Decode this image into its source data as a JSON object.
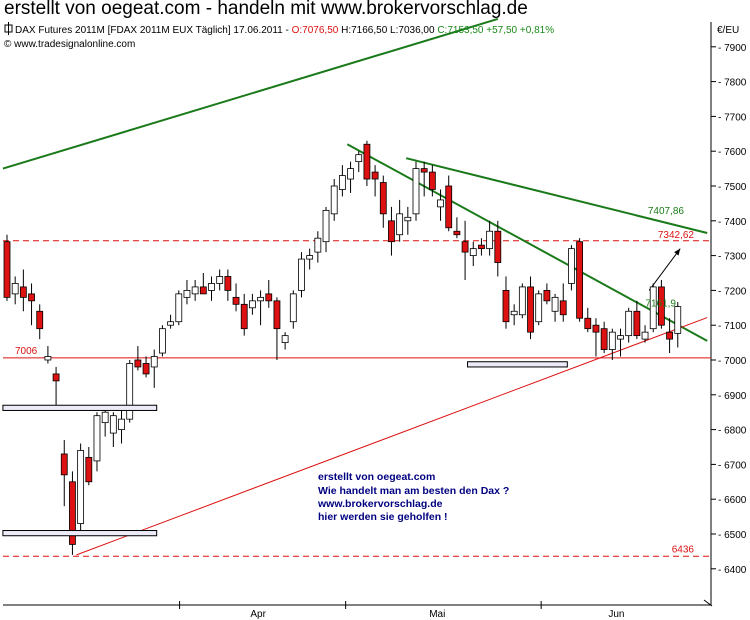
{
  "banner": "erstellt von oegeat.com - handeln mit www.brokervorschlag.de",
  "header": {
    "instrument": "DAX Futures 2011M [FDAX 2011M EUX  Täglich] 17.06.2011 - ",
    "open": "O:7076,50",
    "hl": " H:7166,50 L:7036,00 ",
    "close_change": "C:7153,50 +57,50 +0,81%",
    "copyright": "© www.tradesignalonline.com"
  },
  "axis": {
    "unit": "€/EU"
  },
  "annotation_box": {
    "line1": "erstellt von oegeat.com",
    "line2": "Wie handelt man am besten den Dax ?",
    "line3": "www.brokervorschlag.de",
    "line4": "hier werden sie geholfen !"
  },
  "colors": {
    "bull": "#ffffff",
    "bear": "#dd1111",
    "trendline": "#1a7a1a",
    "support": "#dd1111",
    "annotation": "#000080"
  },
  "chart_data": {
    "type": "candlestick",
    "title": "DAX Futures 2011M [FDAX 2011M EUX  Täglich] 17.06.2011",
    "ylabel": "€/EU",
    "ylim": [
      6370,
      7990
    ],
    "yticks": [
      6400,
      6500,
      6600,
      6700,
      6800,
      6900,
      7000,
      7100,
      7200,
      7300,
      7400,
      7500,
      7600,
      7700,
      7800,
      7900
    ],
    "x_tick_labels": [
      "Apr",
      "Mai",
      "Jun"
    ],
    "last": {
      "open": 7076.5,
      "high": 7166.5,
      "low": 7036.0,
      "close": 7153.5,
      "change": 57.5,
      "change_pct": 0.81
    },
    "candles": [
      {
        "o": 7340,
        "h": 7360,
        "l": 7170,
        "c": 7180
      },
      {
        "o": 7190,
        "h": 7240,
        "l": 7160,
        "c": 7220
      },
      {
        "o": 7210,
        "h": 7260,
        "l": 7140,
        "c": 7180
      },
      {
        "o": 7190,
        "h": 7220,
        "l": 7100,
        "c": 7170
      },
      {
        "o": 7140,
        "h": 7160,
        "l": 7060,
        "c": 7090
      },
      {
        "o": 7000,
        "h": 7040,
        "l": 6990,
        "c": 7010
      },
      {
        "o": 6960,
        "h": 6980,
        "l": 6870,
        "c": 6940
      },
      {
        "o": 6730,
        "h": 6770,
        "l": 6580,
        "c": 6670
      },
      {
        "o": 6650,
        "h": 6680,
        "l": 6440,
        "c": 6470
      },
      {
        "o": 6530,
        "h": 6760,
        "l": 6500,
        "c": 6740
      },
      {
        "o": 6720,
        "h": 6750,
        "l": 6640,
        "c": 6650
      },
      {
        "o": 6710,
        "h": 6850,
        "l": 6680,
        "c": 6840
      },
      {
        "o": 6820,
        "h": 6860,
        "l": 6780,
        "c": 6850
      },
      {
        "o": 6790,
        "h": 6850,
        "l": 6750,
        "c": 6840
      },
      {
        "o": 6800,
        "h": 6860,
        "l": 6760,
        "c": 6830
      },
      {
        "o": 6830,
        "h": 7000,
        "l": 6820,
        "c": 6990
      },
      {
        "o": 7000,
        "h": 7040,
        "l": 6970,
        "c": 6980
      },
      {
        "o": 6990,
        "h": 7010,
        "l": 6950,
        "c": 6960
      },
      {
        "o": 6980,
        "h": 7030,
        "l": 6920,
        "c": 7010
      },
      {
        "o": 7020,
        "h": 7100,
        "l": 7010,
        "c": 7090
      },
      {
        "o": 7100,
        "h": 7130,
        "l": 7090,
        "c": 7110
      },
      {
        "o": 7110,
        "h": 7200,
        "l": 7100,
        "c": 7190
      },
      {
        "o": 7180,
        "h": 7230,
        "l": 7160,
        "c": 7200
      },
      {
        "o": 7190,
        "h": 7230,
        "l": 7170,
        "c": 7210
      },
      {
        "o": 7210,
        "h": 7250,
        "l": 7190,
        "c": 7190
      },
      {
        "o": 7200,
        "h": 7240,
        "l": 7170,
        "c": 7220
      },
      {
        "o": 7220,
        "h": 7260,
        "l": 7200,
        "c": 7240
      },
      {
        "o": 7240,
        "h": 7260,
        "l": 7170,
        "c": 7200
      },
      {
        "o": 7180,
        "h": 7220,
        "l": 7140,
        "c": 7160
      },
      {
        "o": 7160,
        "h": 7190,
        "l": 7070,
        "c": 7090
      },
      {
        "o": 7150,
        "h": 7190,
        "l": 7130,
        "c": 7170
      },
      {
        "o": 7170,
        "h": 7200,
        "l": 7100,
        "c": 7180
      },
      {
        "o": 7190,
        "h": 7230,
        "l": 7150,
        "c": 7170
      },
      {
        "o": 7170,
        "h": 7180,
        "l": 7000,
        "c": 7090
      },
      {
        "o": 7050,
        "h": 7080,
        "l": 7030,
        "c": 7070
      },
      {
        "o": 7110,
        "h": 7200,
        "l": 7090,
        "c": 7190
      },
      {
        "o": 7200,
        "h": 7310,
        "l": 7180,
        "c": 7290
      },
      {
        "o": 7290,
        "h": 7320,
        "l": 7260,
        "c": 7300
      },
      {
        "o": 7310,
        "h": 7370,
        "l": 7280,
        "c": 7350
      },
      {
        "o": 7340,
        "h": 7440,
        "l": 7310,
        "c": 7430
      },
      {
        "o": 7420,
        "h": 7520,
        "l": 7400,
        "c": 7500
      },
      {
        "o": 7490,
        "h": 7560,
        "l": 7470,
        "c": 7530
      },
      {
        "o": 7520,
        "h": 7570,
        "l": 7480,
        "c": 7550
      },
      {
        "o": 7570,
        "h": 7600,
        "l": 7540,
        "c": 7590
      },
      {
        "o": 7620,
        "h": 7630,
        "l": 7500,
        "c": 7520
      },
      {
        "o": 7540,
        "h": 7560,
        "l": 7470,
        "c": 7520
      },
      {
        "o": 7510,
        "h": 7530,
        "l": 7380,
        "c": 7420
      },
      {
        "o": 7400,
        "h": 7440,
        "l": 7300,
        "c": 7340
      },
      {
        "o": 7360,
        "h": 7460,
        "l": 7340,
        "c": 7420
      },
      {
        "o": 7400,
        "h": 7440,
        "l": 7360,
        "c": 7410
      },
      {
        "o": 7420,
        "h": 7570,
        "l": 7400,
        "c": 7550
      },
      {
        "o": 7550,
        "h": 7570,
        "l": 7470,
        "c": 7540
      },
      {
        "o": 7540,
        "h": 7560,
        "l": 7470,
        "c": 7490
      },
      {
        "o": 7440,
        "h": 7490,
        "l": 7400,
        "c": 7460
      },
      {
        "o": 7500,
        "h": 7530,
        "l": 7370,
        "c": 7380
      },
      {
        "o": 7370,
        "h": 7410,
        "l": 7350,
        "c": 7360
      },
      {
        "o": 7340,
        "h": 7400,
        "l": 7230,
        "c": 7310
      },
      {
        "o": 7300,
        "h": 7340,
        "l": 7270,
        "c": 7320
      },
      {
        "o": 7330,
        "h": 7350,
        "l": 7300,
        "c": 7320
      },
      {
        "o": 7320,
        "h": 7400,
        "l": 7300,
        "c": 7370
      },
      {
        "o": 7370,
        "h": 7400,
        "l": 7240,
        "c": 7280
      },
      {
        "o": 7200,
        "h": 7240,
        "l": 7090,
        "c": 7110
      },
      {
        "o": 7130,
        "h": 7160,
        "l": 7100,
        "c": 7140
      },
      {
        "o": 7130,
        "h": 7220,
        "l": 7120,
        "c": 7210
      },
      {
        "o": 7210,
        "h": 7240,
        "l": 7060,
        "c": 7080
      },
      {
        "o": 7110,
        "h": 7200,
        "l": 7100,
        "c": 7190
      },
      {
        "o": 7200,
        "h": 7220,
        "l": 7160,
        "c": 7170
      },
      {
        "o": 7140,
        "h": 7190,
        "l": 7110,
        "c": 7180
      },
      {
        "o": 7170,
        "h": 7220,
        "l": 7110,
        "c": 7130
      },
      {
        "o": 7220,
        "h": 7330,
        "l": 7200,
        "c": 7320
      },
      {
        "o": 7340,
        "h": 7350,
        "l": 7110,
        "c": 7120
      },
      {
        "o": 7120,
        "h": 7150,
        "l": 7080,
        "c": 7090
      },
      {
        "o": 7100,
        "h": 7120,
        "l": 7010,
        "c": 7080
      },
      {
        "o": 7090,
        "h": 7110,
        "l": 7020,
        "c": 7030
      },
      {
        "o": 7030,
        "h": 7090,
        "l": 7000,
        "c": 7080
      },
      {
        "o": 7060,
        "h": 7090,
        "l": 7010,
        "c": 7070
      },
      {
        "o": 7070,
        "h": 7150,
        "l": 7050,
        "c": 7140
      },
      {
        "o": 7140,
        "h": 7170,
        "l": 7060,
        "c": 7070
      },
      {
        "o": 7060,
        "h": 7100,
        "l": 7050,
        "c": 7080
      },
      {
        "o": 7090,
        "h": 7220,
        "l": 7080,
        "c": 7210
      },
      {
        "o": 7210,
        "h": 7230,
        "l": 7090,
        "c": 7100
      },
      {
        "o": 7080,
        "h": 7120,
        "l": 7020,
        "c": 7060
      },
      {
        "o": 7076.5,
        "h": 7166.5,
        "l": 7036,
        "c": 7153.5
      }
    ],
    "horizontal_levels": [
      {
        "value": 7006,
        "label": "7006",
        "style": "solid"
      },
      {
        "value": 7342.62,
        "label": "7342,62",
        "style": "dashed"
      },
      {
        "value": 6436,
        "label": "6436",
        "style": "dashed"
      }
    ],
    "price_labels": [
      {
        "value": 7407.86,
        "label": "7407,86"
      },
      {
        "value": 7161.9,
        "label": "7161,9"
      }
    ]
  }
}
